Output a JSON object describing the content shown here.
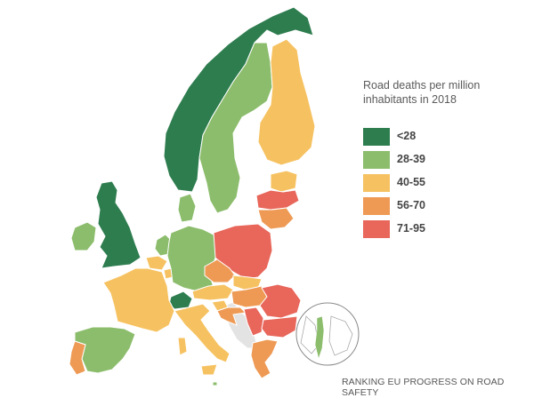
{
  "legend": {
    "title_line1": "Road deaths per million",
    "title_line2": "inhabitants in 2018",
    "items": [
      {
        "label": "<28",
        "color": "#2e7d4f"
      },
      {
        "label": "28-39",
        "color": "#8cbd6c"
      },
      {
        "label": "40-55",
        "color": "#f6c261"
      },
      {
        "label": "56-70",
        "color": "#ee9a55"
      },
      {
        "label": "71-95",
        "color": "#e8665a"
      }
    ]
  },
  "footer": "RANKING EU PROGRESS ON ROAD SAFETY",
  "regions": [
    {
      "name": "norway",
      "category": "<28"
    },
    {
      "name": "sweden",
      "category": "28-39"
    },
    {
      "name": "finland",
      "category": "40-55"
    },
    {
      "name": "estonia",
      "category": "40-55"
    },
    {
      "name": "latvia",
      "category": "71-95"
    },
    {
      "name": "lithuania",
      "category": "56-70"
    },
    {
      "name": "denmark",
      "category": "28-39"
    },
    {
      "name": "united-kingdom",
      "category": "<28"
    },
    {
      "name": "ireland",
      "category": "28-39"
    },
    {
      "name": "netherlands",
      "category": "28-39"
    },
    {
      "name": "belgium",
      "category": "40-55"
    },
    {
      "name": "luxembourg",
      "category": "40-55"
    },
    {
      "name": "germany",
      "category": "28-39"
    },
    {
      "name": "poland",
      "category": "71-95"
    },
    {
      "name": "czechia",
      "category": "56-70"
    },
    {
      "name": "slovakia",
      "category": "40-55"
    },
    {
      "name": "austria",
      "category": "40-55"
    },
    {
      "name": "switzerland",
      "category": "<28"
    },
    {
      "name": "hungary",
      "category": "56-70"
    },
    {
      "name": "slovenia",
      "category": "40-55"
    },
    {
      "name": "croatia",
      "category": "56-70"
    },
    {
      "name": "serbia",
      "category": "71-95"
    },
    {
      "name": "romania",
      "category": "71-95"
    },
    {
      "name": "bulgaria",
      "category": "71-95"
    },
    {
      "name": "greece",
      "category": "56-70"
    },
    {
      "name": "france",
      "category": "40-55"
    },
    {
      "name": "spain",
      "category": "28-39"
    },
    {
      "name": "portugal",
      "category": "56-70"
    },
    {
      "name": "italy",
      "category": "40-55"
    },
    {
      "name": "malta",
      "category": "28-39"
    },
    {
      "name": "cyprus",
      "category": "40-55"
    },
    {
      "name": "israel",
      "category": "28-39"
    }
  ]
}
